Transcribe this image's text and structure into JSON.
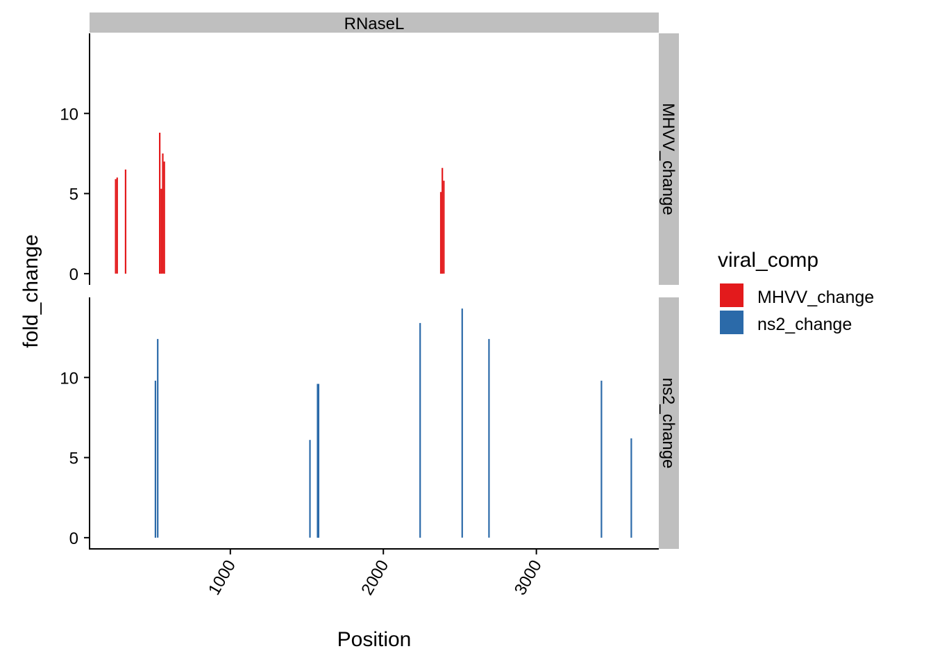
{
  "chart_data": {
    "type": "bar",
    "facet_column": "RNaseL",
    "panels": [
      {
        "label": "MHVV_change",
        "series": "MHVV_change",
        "color": "#e31a1c",
        "points": [
          {
            "x": 250,
            "y": 5.9
          },
          {
            "x": 260,
            "y": 6.0
          },
          {
            "x": 315,
            "y": 6.5
          },
          {
            "x": 538,
            "y": 8.8
          },
          {
            "x": 548,
            "y": 5.3
          },
          {
            "x": 558,
            "y": 7.5
          },
          {
            "x": 568,
            "y": 7.0
          },
          {
            "x": 2375,
            "y": 5.1
          },
          {
            "x": 2385,
            "y": 6.6
          },
          {
            "x": 2395,
            "y": 5.8
          }
        ]
      },
      {
        "label": "ns2_change",
        "series": "ns2_change",
        "color": "#2b6aa9",
        "points": [
          {
            "x": 510,
            "y": 9.8
          },
          {
            "x": 525,
            "y": 12.4
          },
          {
            "x": 1520,
            "y": 6.1
          },
          {
            "x": 1570,
            "y": 9.6
          },
          {
            "x": 1576,
            "y": 9.6
          },
          {
            "x": 2240,
            "y": 13.4
          },
          {
            "x": 2515,
            "y": 14.3
          },
          {
            "x": 2690,
            "y": 12.4
          },
          {
            "x": 3425,
            "y": 9.8
          },
          {
            "x": 3620,
            "y": 6.2
          }
        ]
      }
    ],
    "xlabel": "Position",
    "ylabel": "fold_change",
    "xlim": [
      80,
      3800
    ],
    "ylim": [
      -0.7,
      15
    ],
    "xticks": [
      1000,
      2000,
      3000
    ],
    "xtick_labels": [
      "1000",
      "2000",
      "3000"
    ],
    "yticks": [
      0,
      5,
      10
    ],
    "ytick_labels": [
      "0",
      "5",
      "10"
    ],
    "legend": {
      "title": "viral_comp",
      "position": "right",
      "entries": [
        {
          "label": "MHVV_change",
          "color": "#e31a1c"
        },
        {
          "label": "ns2_change",
          "color": "#2b6aa9"
        }
      ]
    },
    "grid": false
  }
}
